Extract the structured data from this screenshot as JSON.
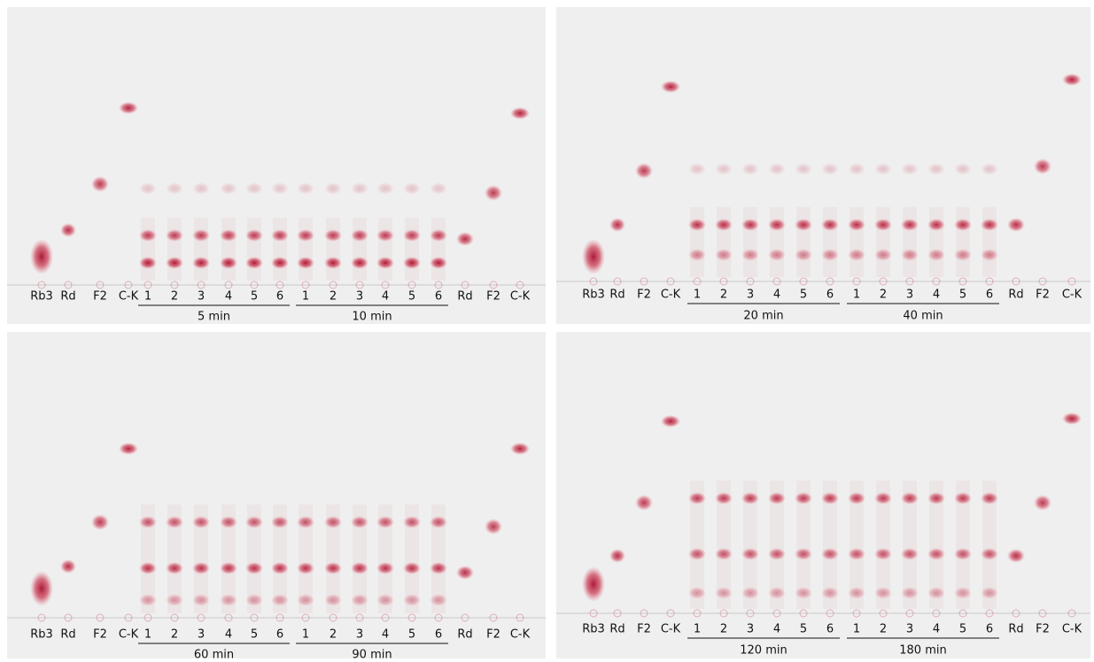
{
  "panels": [
    {
      "lanes": [
        "Rb3",
        "Rd",
        "F2",
        "C-K",
        "1",
        "2",
        "3",
        "4",
        "5",
        "6",
        "1",
        "2",
        "3",
        "4",
        "5",
        "6",
        "Rd",
        "F2",
        "C-K"
      ],
      "groups": [
        "5 min",
        "10 min"
      ]
    },
    {
      "lanes": [
        "Rb3",
        "Rd",
        "F2",
        "C-K",
        "1",
        "2",
        "3",
        "4",
        "5",
        "6",
        "1",
        "2",
        "3",
        "4",
        "5",
        "6",
        "Rd",
        "F2",
        "C-K"
      ],
      "groups": [
        "20 min",
        "40 min"
      ]
    },
    {
      "lanes": [
        "Rb3",
        "Rd",
        "F2",
        "C-K",
        "1",
        "2",
        "3",
        "4",
        "5",
        "6",
        "1",
        "2",
        "3",
        "4",
        "5",
        "6",
        "Rd",
        "F2",
        "C-K"
      ],
      "groups": [
        "60 min",
        "90 min"
      ]
    },
    {
      "lanes": [
        "Rb3",
        "Rd",
        "F2",
        "C-K",
        "1",
        "2",
        "3",
        "4",
        "5",
        "6",
        "1",
        "2",
        "3",
        "4",
        "5",
        "6",
        "Rd",
        "F2",
        "C-K"
      ],
      "groups": [
        "120 min",
        "180 min"
      ]
    }
  ]
}
